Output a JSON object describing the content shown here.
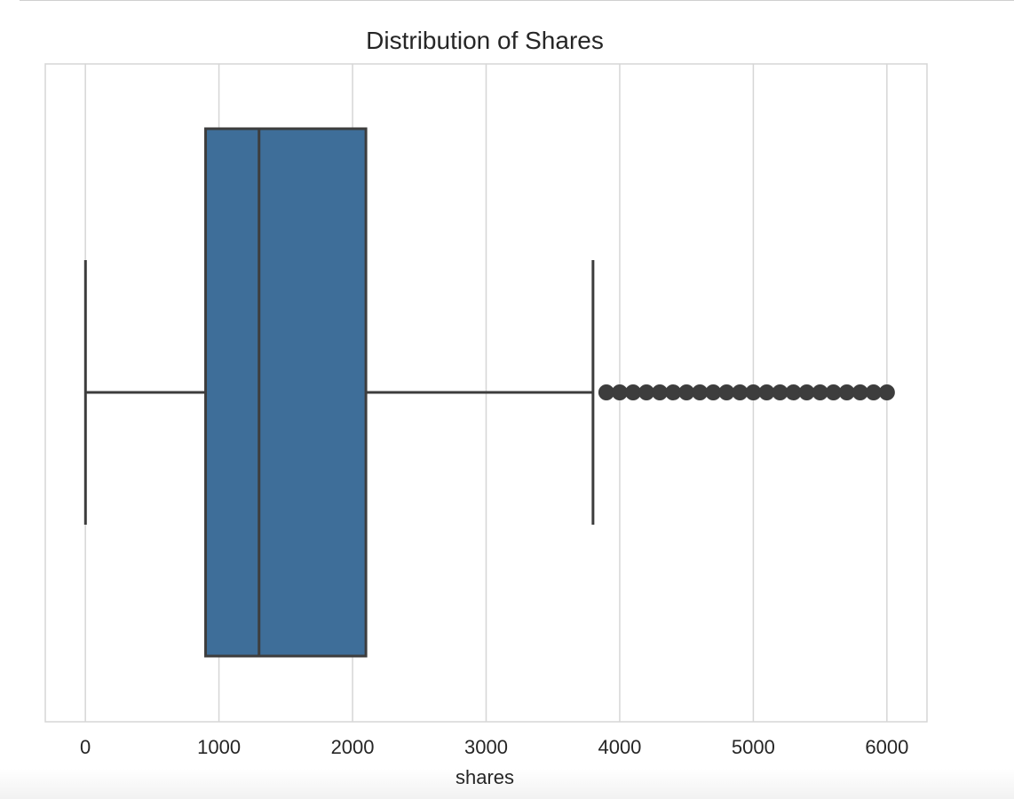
{
  "chart_data": {
    "type": "box",
    "orientation": "horizontal",
    "title": "Distribution of Shares",
    "xlabel": "shares",
    "ylabel": "",
    "xlim": [
      -300,
      6300
    ],
    "x_ticks": [
      0,
      1000,
      2000,
      3000,
      4000,
      5000,
      6000
    ],
    "x_tick_labels": [
      "0",
      "1000",
      "2000",
      "3000",
      "4000",
      "5000",
      "6000"
    ],
    "grid": "vertical",
    "legend": "none",
    "box": {
      "whisker_low": 1,
      "q1": 900,
      "median": 1300,
      "q3": 2100,
      "whisker_high": 3800,
      "outliers": [
        3900,
        4000,
        4100,
        4200,
        4300,
        4400,
        4500,
        4600,
        4700,
        4800,
        4900,
        5000,
        5100,
        5200,
        5300,
        5400,
        5500,
        5600,
        5700,
        5800,
        5900,
        6000
      ]
    },
    "colors": {
      "box_fill": "#3e6e99",
      "line": "#3d3d3d",
      "grid": "#d6d6d6",
      "frame": "#d6d6d6"
    }
  }
}
